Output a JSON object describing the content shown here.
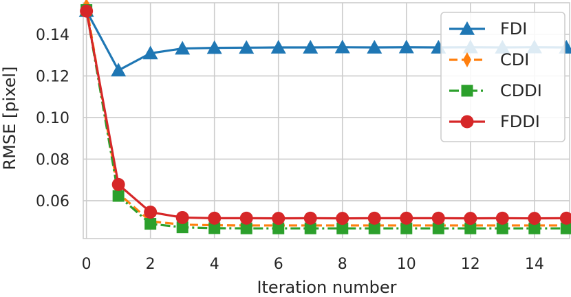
{
  "chart_data": {
    "type": "line",
    "title": "",
    "xlabel": "Iteration number",
    "ylabel": "RMSE [pixel]",
    "xlim": [
      -0.1,
      15.1
    ],
    "ylim": [
      0.0418,
      0.1552
    ],
    "xticks": [
      0,
      2,
      4,
      6,
      8,
      10,
      12,
      14
    ],
    "xtick_labels": [
      "0",
      "2",
      "4",
      "6",
      "8",
      "10",
      "12",
      "14"
    ],
    "yticks": [
      0.06,
      0.08,
      0.1,
      0.12,
      0.14
    ],
    "ytick_labels": [
      "0.06",
      "0.08",
      "0.10",
      "0.12",
      "0.14"
    ],
    "grid": true,
    "legend_position": "upper right",
    "x": [
      0,
      1,
      2,
      3,
      4,
      5,
      6,
      7,
      8,
      9,
      10,
      11,
      12,
      13,
      14,
      15
    ],
    "series": [
      {
        "name": "FDI",
        "color": "#1f77b4",
        "marker": "triangle-up",
        "linestyle": "solid",
        "values": [
          0.1513,
          0.1227,
          0.1309,
          0.1332,
          0.1335,
          0.1336,
          0.1337,
          0.1337,
          0.1338,
          0.1337,
          0.1338,
          0.1337,
          0.1338,
          0.1337,
          0.1338,
          0.1337
        ]
      },
      {
        "name": "CDI",
        "color": "#ff7f0e",
        "marker": "thin-diamond",
        "linestyle": "dashed",
        "values": [
          0.1537,
          0.0635,
          0.0501,
          0.0485,
          0.0482,
          0.0481,
          0.0481,
          0.0481,
          0.0481,
          0.0481,
          0.0481,
          0.0481,
          0.0481,
          0.0481,
          0.0481,
          0.0481
        ]
      },
      {
        "name": "CDDI",
        "color": "#2ca02c",
        "marker": "square",
        "linestyle": "dashdot",
        "values": [
          0.1517,
          0.0623,
          0.0489,
          0.0472,
          0.0468,
          0.0467,
          0.0467,
          0.0467,
          0.0467,
          0.0467,
          0.0467,
          0.0467,
          0.0467,
          0.0467,
          0.0467,
          0.0467
        ]
      },
      {
        "name": "FDDI",
        "color": "#d62728",
        "marker": "circle",
        "linestyle": "solid",
        "values": [
          0.1512,
          0.0678,
          0.0545,
          0.0519,
          0.0516,
          0.0516,
          0.0515,
          0.0516,
          0.0515,
          0.0516,
          0.0516,
          0.0516,
          0.0515,
          0.0516,
          0.0515,
          0.0516
        ]
      }
    ]
  }
}
